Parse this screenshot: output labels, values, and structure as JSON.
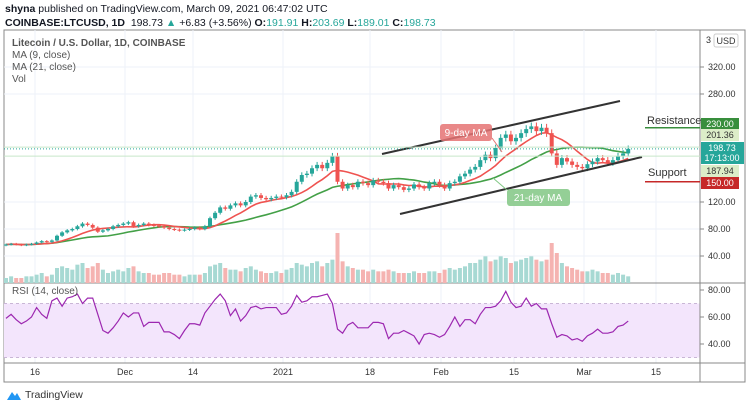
{
  "header": {
    "author": "shyna",
    "published": "published on TradingView.com, March 09, 2021 06:47:02 UTC",
    "symbol": "COINBASE:LTCUSD, 1D",
    "last": "198.73",
    "change": "+6.83 (+3.56%)",
    "o_label": "O:",
    "o": "191.91",
    "h_label": "H:",
    "h": "203.69",
    "l_label": "L:",
    "l": "189.01",
    "c_label": "C:",
    "c": "198.73"
  },
  "legend": {
    "title": "Litecoin / U.S. Dollar, 1D, COINBASE",
    "ma9": "MA (9, close)",
    "ma21": "MA (21, close)",
    "vol": "Vol",
    "rsi": "RSI (14, close)"
  },
  "price_axis": {
    "currency": "USD",
    "top_partial": "3",
    "ticks": [
      "320.00",
      "280.00",
      "120.00",
      "80.00",
      "40.00"
    ],
    "tick_values": [
      320,
      280,
      120,
      80,
      40
    ],
    "markers": [
      {
        "label": "230.00",
        "value": 230,
        "color": "#388e3c"
      },
      {
        "label": "201.36",
        "value": 201.36,
        "color": "#dcedc8"
      },
      {
        "label": "187.94",
        "value": 187.94,
        "color": "#dcedc8"
      },
      {
        "label": "150.00",
        "value": 150,
        "color": "#c62828"
      }
    ],
    "last_price": "198.73",
    "countdown": "17:13:00"
  },
  "rsi_axis": {
    "ticks": [
      "80.00",
      "60.00",
      "40.00"
    ],
    "tick_values": [
      80,
      60,
      40
    ],
    "band": [
      30,
      70
    ]
  },
  "time_axis": {
    "labels": [
      "16",
      "Dec",
      "14",
      "2021",
      "18",
      "Feb",
      "15",
      "Mar",
      "15"
    ]
  },
  "annotations": {
    "resistance": "Resistance",
    "support": "Support",
    "ma9_label": "9-day MA",
    "ma21_label": "21-day MA"
  },
  "footer": {
    "brand": "TradingView"
  },
  "colors": {
    "up": "#26a69a",
    "down": "#ef5350",
    "ma9": "#ef5350",
    "ma21": "#43a047",
    "rsi": "#9c27b0",
    "rsi_band": "#f3e5fc"
  },
  "chart_data": {
    "type": "candlestick",
    "title": "Litecoin / U.S. Dollar, 1D, COINBASE",
    "start_date": "2020-11-07",
    "end_date": "2021-03-09",
    "ylim": [
      20,
      340
    ],
    "close": [
      57,
      58,
      57,
      56,
      57,
      58,
      60,
      62,
      61,
      63,
      70,
      75,
      78,
      80,
      84,
      88,
      86,
      82,
      76,
      78,
      80,
      84,
      86,
      88,
      90,
      84,
      86,
      88,
      86,
      85,
      84,
      82,
      80,
      79,
      78,
      79,
      80,
      82,
      80,
      84,
      96,
      104,
      112,
      110,
      115,
      118,
      115,
      120,
      128,
      130,
      126,
      124,
      126,
      128,
      127,
      130,
      135,
      150,
      160,
      162,
      170,
      175,
      170,
      178,
      188,
      150,
      140,
      145,
      142,
      150,
      148,
      145,
      152,
      150,
      148,
      140,
      145,
      142,
      138,
      140,
      146,
      142,
      140,
      148,
      150,
      145,
      140,
      148,
      150,
      158,
      162,
      168,
      172,
      182,
      190,
      185,
      200,
      215,
      220,
      210,
      215,
      222,
      228,
      232,
      225,
      230,
      222,
      192,
      175,
      185,
      180,
      175,
      172,
      170,
      176,
      180,
      185,
      182,
      178,
      182,
      188,
      192,
      198.73
    ],
    "volume": [
      3,
      4,
      3,
      3,
      4,
      4,
      5,
      6,
      4,
      5,
      9,
      10,
      9,
      8,
      11,
      12,
      9,
      10,
      12,
      8,
      6,
      7,
      8,
      7,
      9,
      10,
      7,
      6,
      6,
      5,
      5,
      6,
      6,
      5,
      5,
      4,
      5,
      5,
      5,
      6,
      10,
      11,
      12,
      9,
      8,
      8,
      7,
      9,
      10,
      8,
      7,
      6,
      6,
      7,
      6,
      8,
      9,
      12,
      11,
      10,
      12,
      13,
      10,
      12,
      14,
      30,
      13,
      10,
      9,
      8,
      8,
      7,
      8,
      7,
      7,
      8,
      7,
      6,
      6,
      6,
      7,
      6,
      6,
      7,
      7,
      6,
      8,
      9,
      8,
      9,
      10,
      12,
      12,
      14,
      16,
      13,
      14,
      16,
      15,
      12,
      13,
      14,
      15,
      16,
      14,
      13,
      14,
      24,
      18,
      12,
      10,
      9,
      8,
      7,
      7,
      8,
      7,
      6,
      6,
      5,
      6,
      5,
      4
    ],
    "rsi": [
      59,
      62,
      58,
      55,
      57,
      60,
      67,
      62,
      59,
      72,
      74,
      68,
      74,
      75,
      77,
      70,
      74,
      74,
      62,
      50,
      48,
      52,
      57,
      63,
      60,
      63,
      63,
      53,
      56,
      56,
      56,
      49,
      49,
      47,
      44,
      50,
      55,
      55,
      54,
      63,
      68,
      73,
      77,
      72,
      61,
      66,
      57,
      61,
      67,
      68,
      66,
      67,
      67,
      67,
      62,
      63,
      68,
      76,
      71,
      72,
      75,
      75,
      76,
      77,
      70,
      51,
      48,
      54,
      56,
      52,
      52,
      52,
      56,
      56,
      55,
      44,
      48,
      48,
      50,
      48,
      46,
      40,
      47,
      48,
      47,
      45,
      47,
      53,
      60,
      53,
      58,
      58,
      55,
      62,
      67,
      67,
      68,
      72,
      79,
      71,
      67,
      68,
      74,
      68,
      70,
      66,
      66,
      55,
      45,
      47,
      46,
      43,
      44,
      42,
      46,
      48,
      51,
      48,
      48,
      49,
      53,
      54,
      57
    ],
    "series": [
      {
        "name": "MA (9, close)"
      },
      {
        "name": "MA (21, close)"
      }
    ],
    "resistance": 230,
    "support": 150
  }
}
